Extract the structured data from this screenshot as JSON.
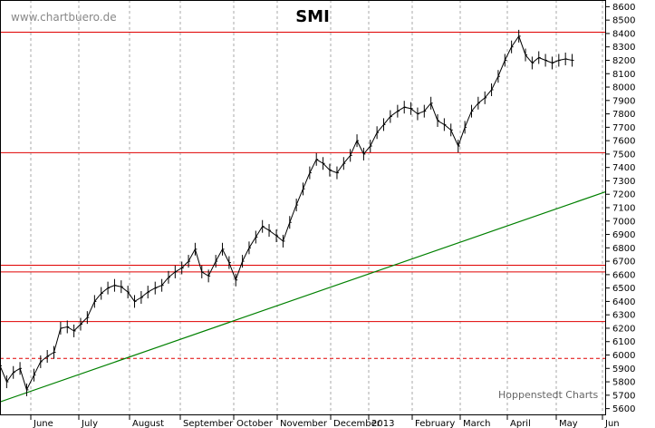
{
  "chart_data": {
    "type": "line",
    "title": "SMI",
    "watermark": "www.chartbuero.de",
    "credit": "Hoppenstedt Charts",
    "ylim": [
      5550,
      8650
    ],
    "y_ticks": [
      5600,
      5700,
      5800,
      5900,
      6000,
      6100,
      6200,
      6300,
      6400,
      6500,
      6600,
      6700,
      6800,
      6900,
      7000,
      7100,
      7200,
      7300,
      7400,
      7500,
      7600,
      7700,
      7800,
      7900,
      8000,
      8100,
      8200,
      8300,
      8400,
      8500,
      8600
    ],
    "y_tick_labels": [
      "5600",
      "5700",
      "5800",
      "5900",
      "6000",
      "6100",
      "6200",
      "6300",
      "6400",
      "6500",
      "6600",
      "6700",
      "6800",
      "6900",
      "7000",
      "7100",
      "7200",
      "7300",
      "7400",
      "7500",
      "7600",
      "7700",
      "7800",
      "7900",
      "8000",
      "8100",
      "8200",
      "8300",
      "8400",
      "8500",
      "8600"
    ],
    "months": [
      "June",
      "July",
      "August",
      "September",
      "October",
      "November",
      "December",
      "2013",
      "February",
      "March",
      "April",
      "May",
      "Jun"
    ],
    "grid": true,
    "horizontal_lines": [
      {
        "value": 8410,
        "color": "#e00000",
        "style": "solid"
      },
      {
        "value": 7510,
        "color": "#e00000",
        "style": "solid"
      },
      {
        "value": 6670,
        "color": "#e00000",
        "style": "solid"
      },
      {
        "value": 6620,
        "color": "#e00000",
        "style": "solid"
      },
      {
        "value": 6250,
        "color": "#e00000",
        "style": "solid"
      },
      {
        "value": 5975,
        "color": "#e00000",
        "style": "dashed"
      }
    ],
    "trendline": {
      "color": "#008000",
      "from": [
        0,
        5650
      ],
      "to": [
        1,
        7220
      ]
    },
    "series": [
      {
        "color": "#000000",
        "x": [
          0.0,
          0.011,
          0.022,
          0.033,
          0.044,
          0.056,
          0.067,
          0.078,
          0.089,
          0.1,
          0.111,
          0.122,
          0.133,
          0.144,
          0.156,
          0.167,
          0.178,
          0.189,
          0.2,
          0.211,
          0.222,
          0.233,
          0.244,
          0.256,
          0.267,
          0.278,
          0.289,
          0.3,
          0.311,
          0.322,
          0.333,
          0.344,
          0.356,
          0.367,
          0.378,
          0.389,
          0.4,
          0.411,
          0.422,
          0.433,
          0.444,
          0.456,
          0.467,
          0.478,
          0.489,
          0.5,
          0.511,
          0.522,
          0.533,
          0.544,
          0.556,
          0.567,
          0.578,
          0.589,
          0.6,
          0.611,
          0.622,
          0.633,
          0.644,
          0.656,
          0.667,
          0.678,
          0.689,
          0.7,
          0.711,
          0.722,
          0.733,
          0.744,
          0.756,
          0.767,
          0.778,
          0.789,
          0.8,
          0.811,
          0.822,
          0.833,
          0.844,
          0.856,
          0.867,
          0.878,
          0.889,
          0.9,
          0.911,
          0.922,
          0.933,
          0.944
        ],
        "values": [
          5920,
          5800,
          5870,
          5900,
          5740,
          5850,
          5950,
          5990,
          6020,
          6200,
          6210,
          6180,
          6230,
          6280,
          6400,
          6460,
          6500,
          6520,
          6510,
          6470,
          6400,
          6430,
          6470,
          6500,
          6520,
          6580,
          6620,
          6650,
          6700,
          6790,
          6620,
          6590,
          6700,
          6790,
          6690,
          6560,
          6700,
          6800,
          6880,
          6960,
          6930,
          6890,
          6850,
          6990,
          7120,
          7240,
          7360,
          7460,
          7430,
          7380,
          7360,
          7430,
          7490,
          7600,
          7500,
          7560,
          7660,
          7720,
          7780,
          7820,
          7850,
          7840,
          7800,
          7820,
          7880,
          7750,
          7720,
          7680,
          7560,
          7700,
          7820,
          7880,
          7920,
          7980,
          8080,
          8200,
          8300,
          8380,
          8240,
          8180,
          8220,
          8200,
          8180,
          8200,
          8210,
          8200
        ]
      }
    ]
  }
}
